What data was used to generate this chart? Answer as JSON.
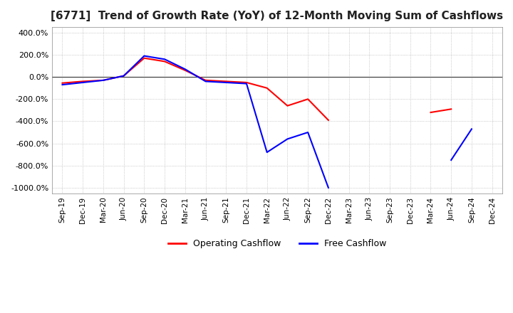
{
  "title": "[6771]  Trend of Growth Rate (YoY) of 12-Month Moving Sum of Cashflows",
  "title_fontsize": 11,
  "ylim": [
    -1050,
    450
  ],
  "yticks": [
    400,
    200,
    0,
    -200,
    -400,
    -600,
    -800,
    -1000
  ],
  "background_color": "#ffffff",
  "plot_bg_color": "#ffffff",
  "grid_color": "#aaaaaa",
  "legend_labels": [
    "Operating Cashflow",
    "Free Cashflow"
  ],
  "legend_colors": [
    "#ff0000",
    "#0000ff"
  ],
  "x_labels": [
    "Sep-19",
    "Dec-19",
    "Mar-20",
    "Jun-20",
    "Sep-20",
    "Dec-20",
    "Mar-21",
    "Jun-21",
    "Sep-21",
    "Dec-21",
    "Mar-22",
    "Jun-22",
    "Sep-22",
    "Dec-22",
    "Mar-23",
    "Jun-23",
    "Sep-23",
    "Dec-23",
    "Mar-24",
    "Jun-24",
    "Sep-24",
    "Dec-24"
  ],
  "op_segments": [
    {
      "x": [
        0,
        1,
        2,
        3,
        4,
        5,
        6,
        7,
        8,
        9,
        10,
        11,
        12,
        13
      ],
      "y": [
        -55,
        -40,
        -30,
        10,
        170,
        140,
        60,
        -30,
        -40,
        -50,
        -100,
        -260,
        -200,
        -390
      ]
    },
    {
      "x": [
        18,
        19
      ],
      "y": [
        -320,
        -290
      ]
    }
  ],
  "fc_segments": [
    {
      "x": [
        0,
        1,
        2,
        3,
        4,
        5,
        6,
        7,
        8,
        9,
        10,
        11,
        12,
        13
      ],
      "y": [
        -70,
        -50,
        -30,
        10,
        190,
        160,
        70,
        -40,
        -50,
        -60,
        -680,
        -560,
        -500,
        -1000
      ]
    },
    {
      "x": [
        19,
        20
      ],
      "y": [
        -750,
        -470
      ]
    }
  ]
}
